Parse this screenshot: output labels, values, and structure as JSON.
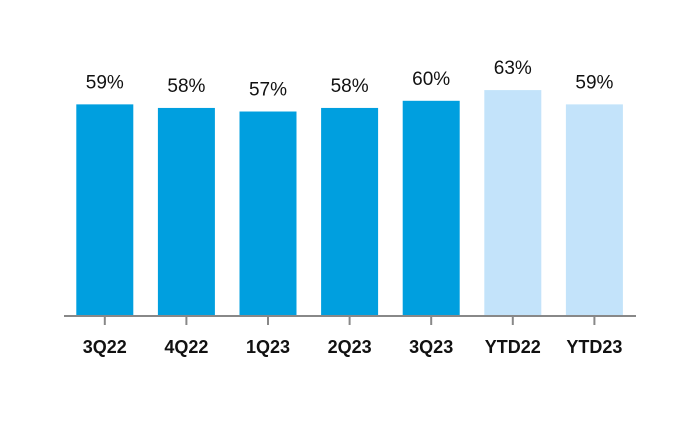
{
  "chart_data": {
    "type": "bar",
    "categories": [
      "3Q22",
      "4Q22",
      "1Q23",
      "2Q23",
      "3Q23",
      "YTD22",
      "YTD23"
    ],
    "values": [
      59,
      58,
      57,
      58,
      60,
      63,
      59
    ],
    "value_labels": [
      "59%",
      "58%",
      "57%",
      "58%",
      "60%",
      "63%",
      "59%"
    ],
    "colors": [
      "#009fdf",
      "#009fdf",
      "#009fdf",
      "#009fdf",
      "#009fdf",
      "#c3e3fa",
      "#c3e3fa"
    ]
  }
}
